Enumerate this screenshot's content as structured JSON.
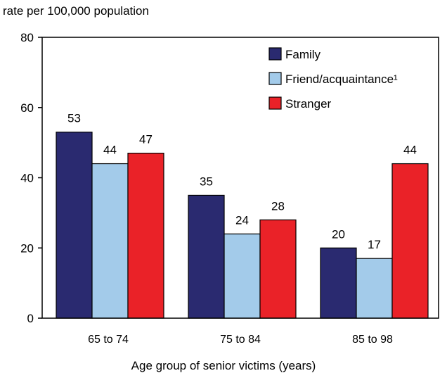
{
  "chart_data": {
    "type": "bar",
    "title": "",
    "ylabel": "rate per 100,000 population",
    "xlabel": "Age group of senior victims (years)",
    "ylim": [
      0,
      80
    ],
    "yticks": [
      0,
      20,
      40,
      60,
      80
    ],
    "grid": false,
    "legend_position": "top-right",
    "categories": [
      "65 to 74",
      "75 to 84",
      "85 to 98"
    ],
    "series": [
      {
        "name": "Family",
        "color": "#2a2a70",
        "values": [
          53,
          35,
          20
        ]
      },
      {
        "name": "Friend/acquaintance¹",
        "color": "#a3cbea",
        "values": [
          44,
          24,
          17
        ]
      },
      {
        "name": "Stranger",
        "color": "#ea2228",
        "values": [
          47,
          28,
          44
        ]
      }
    ]
  }
}
